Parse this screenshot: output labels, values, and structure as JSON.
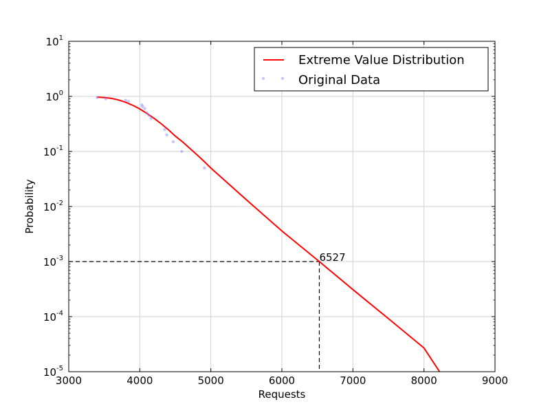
{
  "chart_data": {
    "type": "line",
    "title": "",
    "xlabel": "Requests",
    "ylabel": "Probability",
    "xlim": [
      3000,
      9000
    ],
    "ylim": [
      1e-05,
      10
    ],
    "yscale": "log",
    "grid": true,
    "legend_position": "top-right",
    "x_ticks": [
      "3000",
      "4000",
      "5000",
      "6000",
      "7000",
      "8000",
      "9000"
    ],
    "y_ticks": [
      {
        "base": "10",
        "exp": "1",
        "value": 10
      },
      {
        "base": "10",
        "exp": "0",
        "value": 1
      },
      {
        "base": "10",
        "exp": "-1",
        "value": 0.1
      },
      {
        "base": "10",
        "exp": "-2",
        "value": 0.01
      },
      {
        "base": "10",
        "exp": "-3",
        "value": 0.001
      },
      {
        "base": "10",
        "exp": "-4",
        "value": 0.0001
      },
      {
        "base": "10",
        "exp": "-5",
        "value": 1e-05
      }
    ],
    "series": [
      {
        "name": "Extreme Value Distribution",
        "style": "line",
        "color": "#ff0000",
        "x": [
          3400,
          3500,
          3600,
          3700,
          3800,
          3900,
          4000,
          4100,
          4200,
          4300,
          4400,
          4500,
          4600,
          4700,
          4800,
          4900,
          5000,
          5500,
          6000,
          6527,
          7000,
          7500,
          8000,
          8220
        ],
        "y": [
          0.97,
          0.95,
          0.92,
          0.86,
          0.78,
          0.69,
          0.59,
          0.49,
          0.4,
          0.32,
          0.25,
          0.19,
          0.15,
          0.115,
          0.088,
          0.067,
          0.05,
          0.0133,
          0.0036,
          0.001,
          0.00031,
          9.2e-05,
          2.7e-05,
          1e-05
        ]
      },
      {
        "name": "Original Data",
        "style": "scatter",
        "color": "#8080ff",
        "x": [
          3400,
          3520,
          3800,
          3840,
          4030,
          4040,
          4070,
          4100,
          4130,
          4160,
          4350,
          4380,
          4470,
          4590,
          4910
        ],
        "y": [
          0.95,
          0.9,
          0.85,
          0.8,
          0.7,
          0.65,
          0.6,
          0.5,
          0.45,
          0.4,
          0.25,
          0.2,
          0.15,
          0.1,
          0.05
        ]
      }
    ],
    "annotation": {
      "label": "6527",
      "x": 6527,
      "y": 0.001
    }
  }
}
